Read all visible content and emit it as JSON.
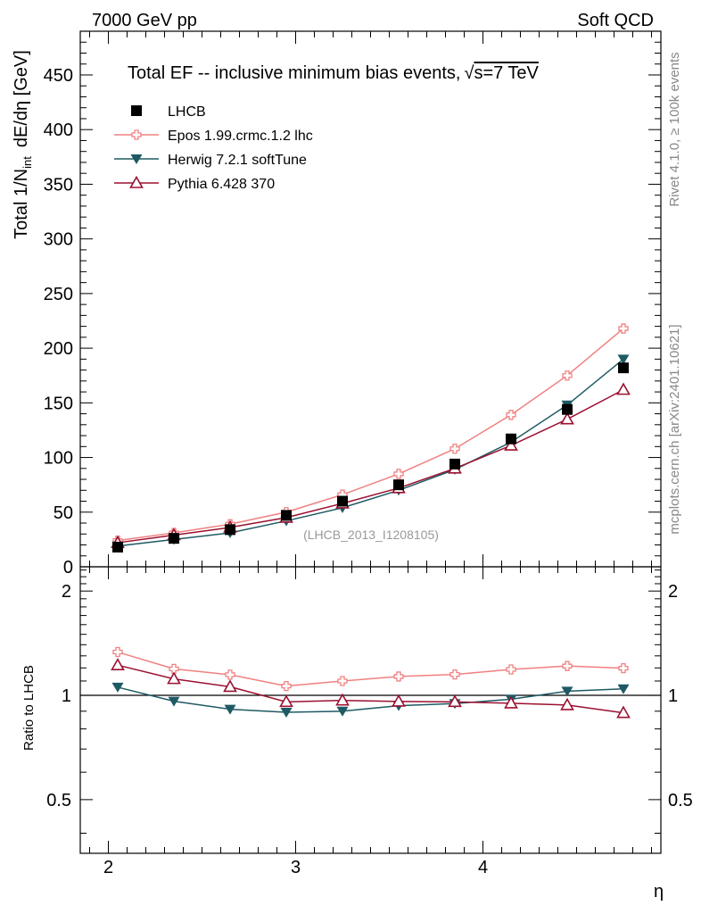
{
  "header": {
    "left": "7000 GeV pp",
    "right": "Soft QCD"
  },
  "side_labels": {
    "rivet": "Rivet 4.1.0, ≥ 100k events",
    "mcplots": "mcplots.cern.ch [arXiv:2401.10621]"
  },
  "chart_data": {
    "type": "line",
    "title_main": "Total EF -- inclusive minimum bias events,",
    "title_energy": "s=7 TeV",
    "analysis_tag": "(LHCB_2013_I1208105)",
    "xlabel": "η",
    "ylabel_main": "Total 1/N",
    "ylabel_sub": "int",
    "ylabel_tail": "dE/dη [GeV]",
    "ylabel_ratio": "Ratio to LHCB",
    "xlim": [
      1.85,
      4.95
    ],
    "ylim": [
      0,
      490
    ],
    "ratio_ylim": [
      0.35,
      2.35
    ],
    "x_ticks": [
      2,
      3,
      4
    ],
    "y_ticks": [
      0,
      50,
      100,
      150,
      200,
      250,
      300,
      350,
      400,
      450
    ],
    "ratio_ticks": [
      0.5,
      1,
      2
    ],
    "x": [
      2.05,
      2.35,
      2.65,
      2.95,
      3.25,
      3.55,
      3.85,
      4.15,
      4.45,
      4.75
    ],
    "series": [
      {
        "name": "LHCB",
        "color": "#000000",
        "marker": "square",
        "values": [
          18,
          26,
          34,
          47,
          60,
          75,
          94,
          117,
          144,
          182
        ]
      },
      {
        "name": "Epos 1.99.crmc.1.2 lhc",
        "color": "#f08080",
        "marker": "cross",
        "values": [
          24,
          31,
          39,
          50,
          66,
          85,
          108,
          139,
          175,
          218
        ]
      },
      {
        "name": "Herwig 7.2.1 softTune",
        "color": "#1e5a64",
        "marker": "tri-down",
        "values": [
          19,
          25,
          31,
          42,
          54,
          70,
          89,
          114,
          148,
          190
        ]
      },
      {
        "name": "Pythia 6.428 370",
        "color": "#9b1030",
        "marker": "tri-up",
        "values": [
          22,
          29,
          36,
          45,
          58,
          72,
          90,
          111,
          135,
          162
        ]
      }
    ]
  }
}
